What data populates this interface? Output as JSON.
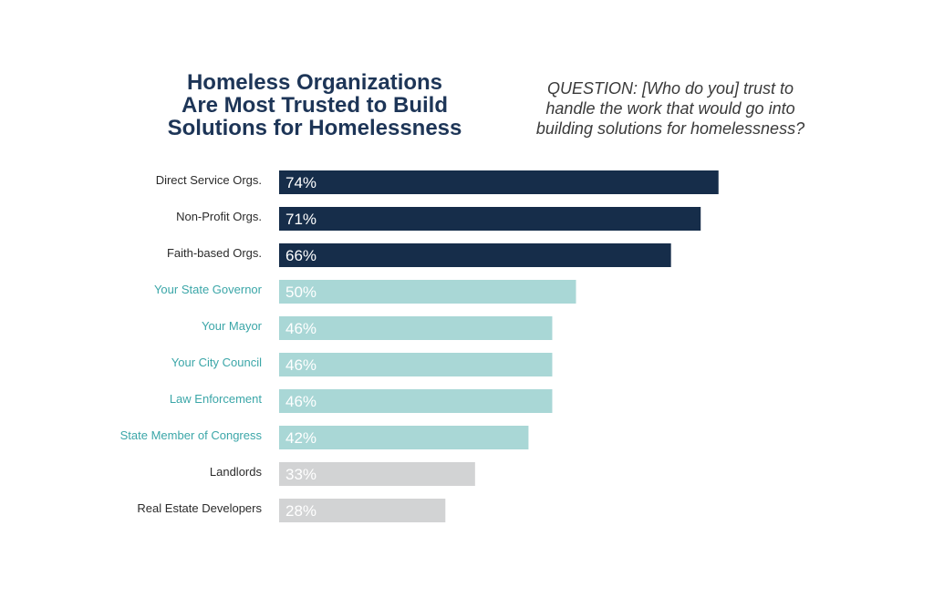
{
  "title_lines": [
    "Homeless Organizations",
    "Are Most Trusted to Build",
    "Solutions for Homelessness"
  ],
  "question_lines": [
    "QUESTION: [Who do you] trust to",
    "handle the work that would go into",
    "building solutions for homelessness?"
  ],
  "colors": {
    "dark": "#162d4a",
    "teal": "#a9d7d6",
    "gray": "#d2d3d4",
    "dark_label": "#2b2b2b",
    "teal_label": "#3ba6a8",
    "gray_label": "#2b2b2b"
  },
  "chart_data": {
    "type": "bar",
    "orientation": "horizontal",
    "categories": [
      "Direct Service Orgs.",
      "Non-Profit Orgs.",
      "Faith-based Orgs.",
      "Your State Governor",
      "Your Mayor",
      "Your City Council",
      "Law Enforcement",
      "State Member of Congress",
      "Landlords",
      "Real Estate Developers"
    ],
    "values": [
      74,
      71,
      66,
      50,
      46,
      46,
      46,
      42,
      33,
      28
    ],
    "value_labels": [
      "74%",
      "71%",
      "66%",
      "50%",
      "46%",
      "46%",
      "46%",
      "42%",
      "33%",
      "28%"
    ],
    "groups": [
      "dark",
      "dark",
      "dark",
      "teal",
      "teal",
      "teal",
      "teal",
      "teal",
      "gray",
      "gray"
    ],
    "unit": "%",
    "xlim": [
      0,
      100
    ],
    "grid": false,
    "legend": "none"
  }
}
